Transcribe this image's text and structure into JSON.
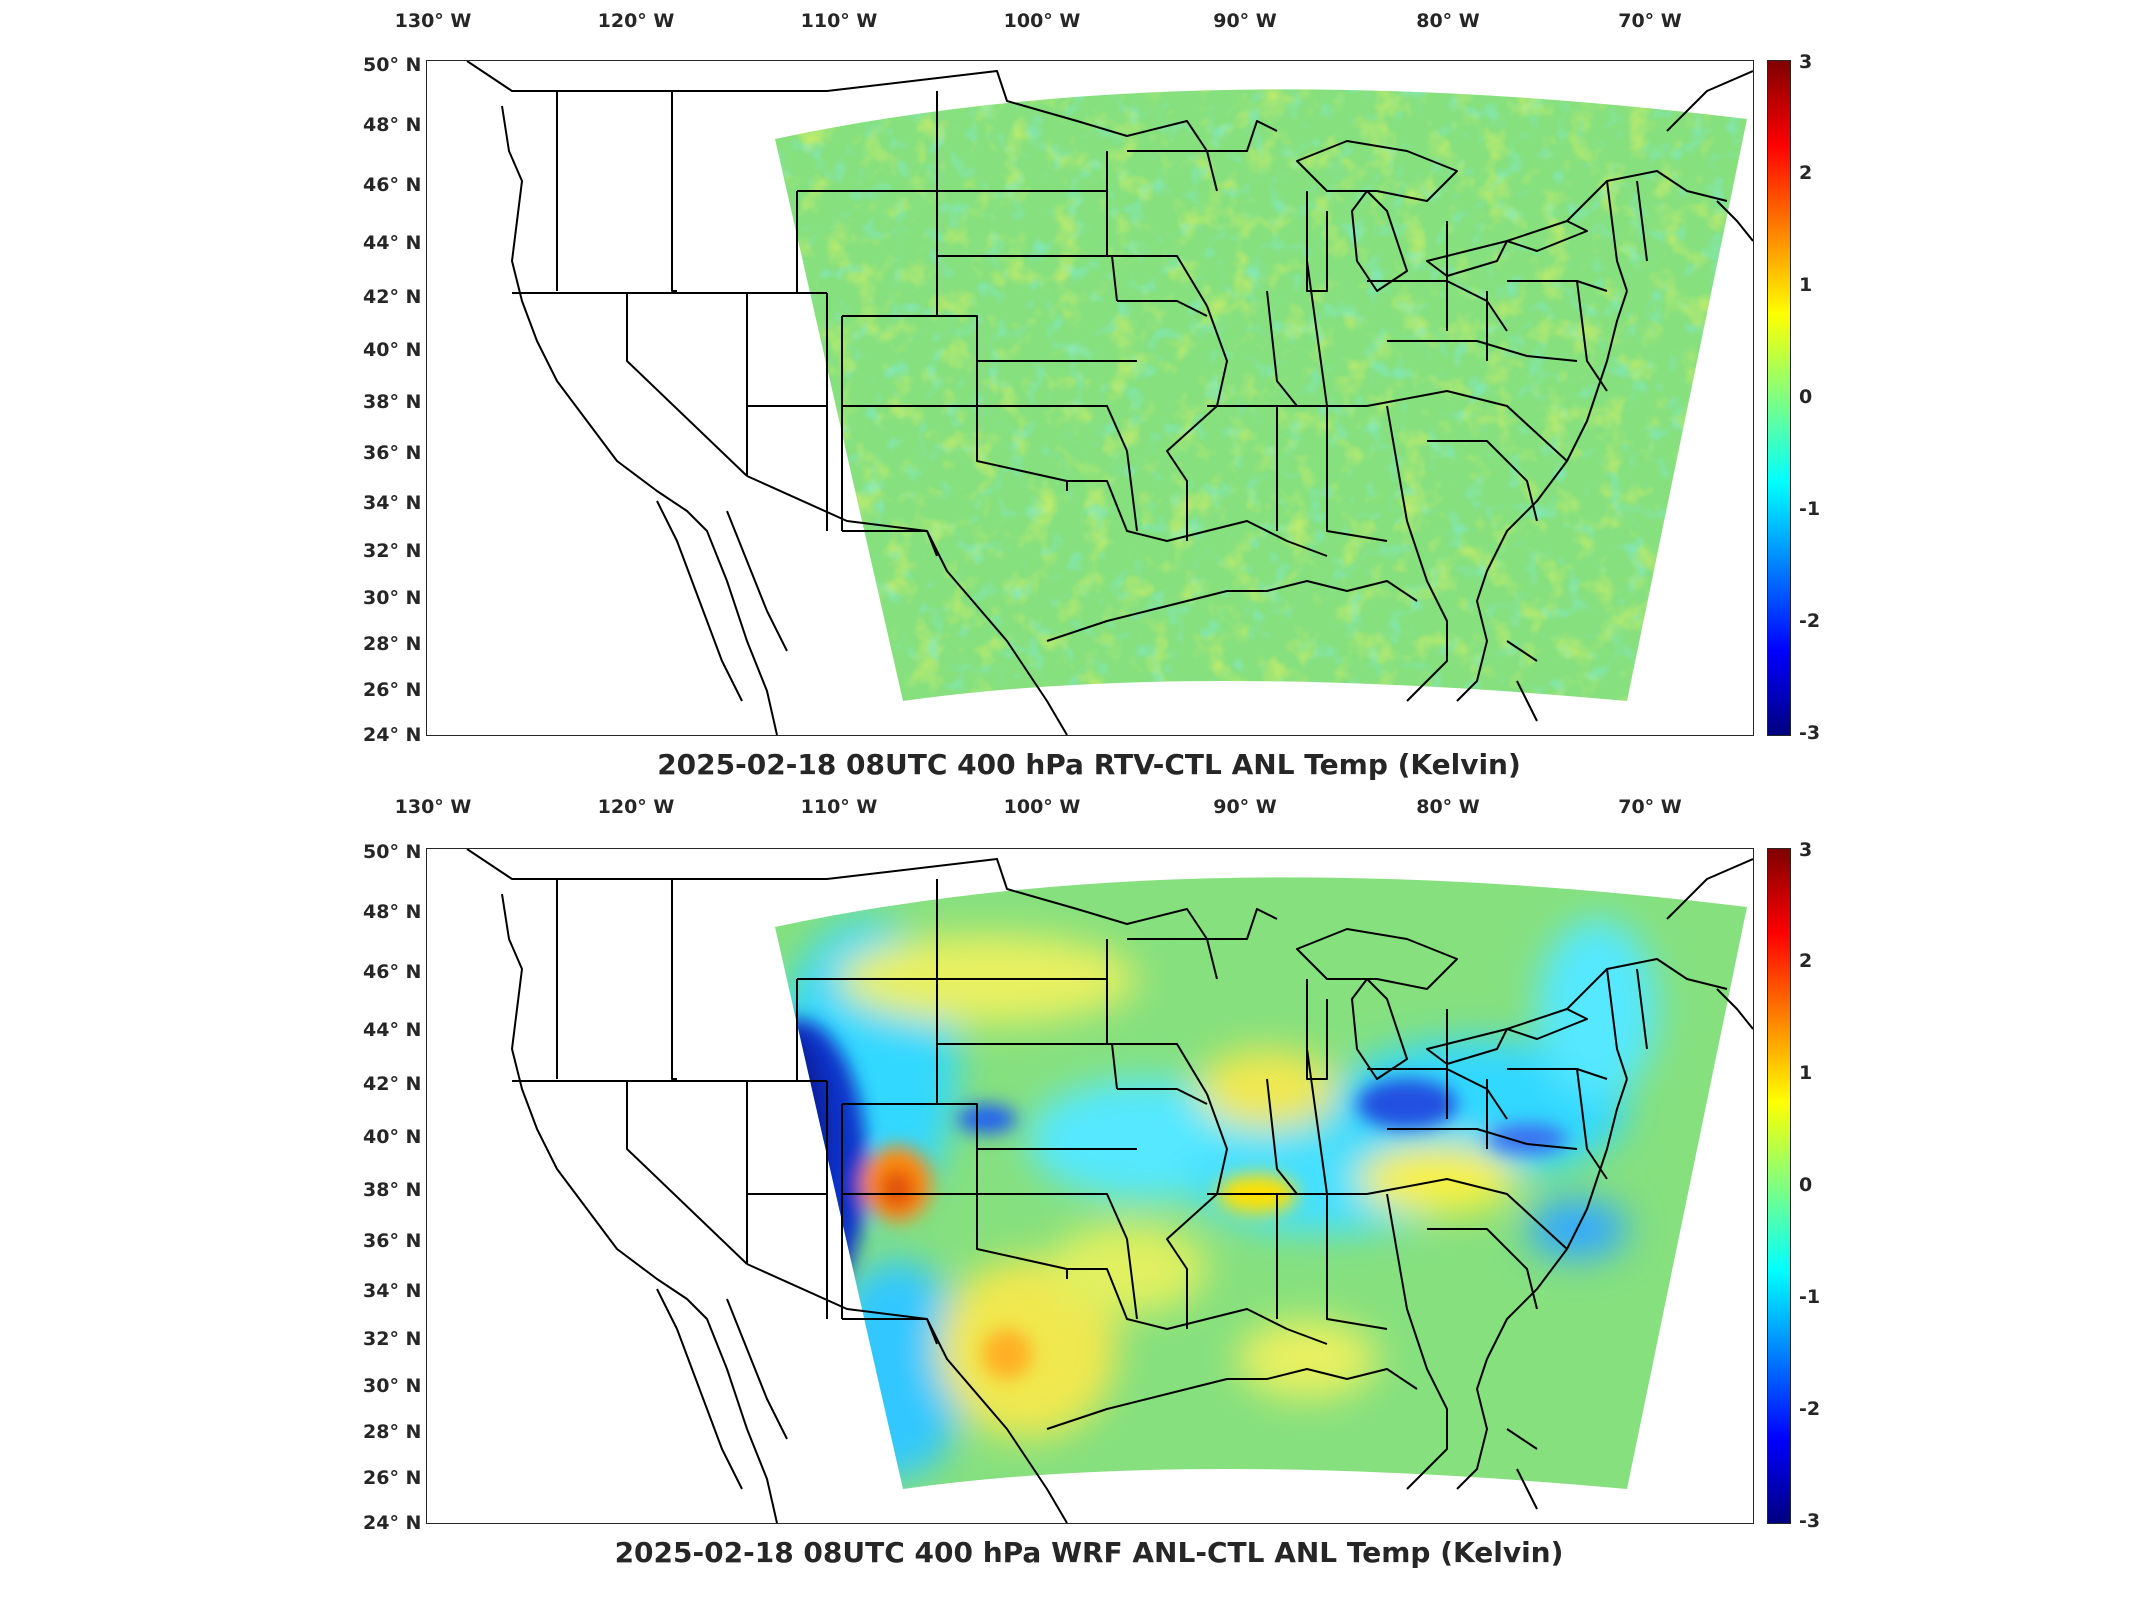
{
  "panels": [
    {
      "title": "2025-02-18 08UTC 400 hPa RTV-CTL ANL Temp (Kelvin)",
      "lon_labels": [
        "130° W",
        "120° W",
        "110° W",
        "100° W",
        "90° W",
        "80° W",
        "70° W"
      ],
      "lat_labels": [
        "50° N",
        "48° N",
        "46° N",
        "44° N",
        "42° N",
        "40° N",
        "38° N",
        "36° N",
        "34° N",
        "32° N",
        "30° N",
        "28° N",
        "26° N",
        "24° N"
      ],
      "colorbar_ticks": [
        "3",
        "2",
        "1",
        "0",
        "-1",
        "-2",
        "-3"
      ],
      "field": "mostly near-zero (green) with scattered small yellow/cyan patches"
    },
    {
      "title": "2025-02-18 08UTC 400 hPa WRF ANL-CTL ANL Temp (Kelvin)",
      "lon_labels": [
        "130° W",
        "120° W",
        "110° W",
        "100° W",
        "90° W",
        "80° W",
        "70° W"
      ],
      "lat_labels": [
        "50° N",
        "48° N",
        "46° N",
        "44° N",
        "42° N",
        "40° N",
        "38° N",
        "36° N",
        "34° N",
        "32° N",
        "30° N",
        "28° N",
        "26° N",
        "24° N"
      ],
      "colorbar_ticks": [
        "3",
        "2",
        "1",
        "0",
        "-1",
        "-2",
        "-3"
      ],
      "field": "large negative (blue) anomaly over Utah/Colorado, positive (orange) over southern Colorado, mixed elsewhere"
    }
  ],
  "colormap": "jet",
  "colormap_range": [
    -3,
    3
  ],
  "colors": {
    "border": "#000000",
    "frame": "#262626",
    "near_zero": "#7ee07a",
    "positive": "#ffe600",
    "strong_positive": "#ff7a00",
    "negative": "#33e0ff",
    "strong_negative": "#0a1ea0"
  }
}
